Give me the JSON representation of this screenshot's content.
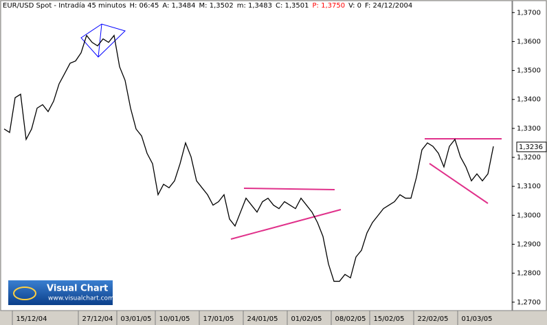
{
  "chart_data": {
    "type": "line",
    "header": [
      {
        "text": "EUR/USD Spot - Intradía 45 minutos",
        "color": "#000000"
      },
      {
        "text": "H: 06:45",
        "color": "#000000"
      },
      {
        "text": "A: 1,3484",
        "color": "#000000"
      },
      {
        "text": "M: 1,3502",
        "color": "#000000"
      },
      {
        "text": "m: 1,3483",
        "color": "#000000"
      },
      {
        "text": "C: 1,3501",
        "color": "#000000"
      },
      {
        "text": "P: 1,3750",
        "color": "#ff0000"
      },
      {
        "text": "V: 0",
        "color": "#000000"
      },
      {
        "text": "F: 24/12/2004",
        "color": "#000000"
      }
    ],
    "categories": [
      null,
      null,
      null,
      null,
      null,
      "15/12/04",
      null,
      null,
      null,
      null,
      null,
      null,
      null,
      null,
      null,
      null,
      null,
      "27/12/04",
      null,
      null,
      null,
      null,
      null,
      null,
      "03/01/05",
      null,
      null,
      null,
      null,
      null,
      null,
      "10/01/05",
      null,
      null,
      null,
      null,
      null,
      null,
      null,
      "17/01/05",
      null,
      null,
      null,
      null,
      null,
      null,
      null,
      "24/01/05",
      null,
      null,
      null,
      null,
      null,
      null,
      null,
      "01/02/05",
      null,
      null,
      null,
      null,
      null,
      null,
      null,
      "08/02/05",
      null,
      null,
      null,
      null,
      null,
      null,
      "15/02/05",
      null,
      null,
      null,
      null,
      null,
      null,
      null,
      "22/02/05",
      null,
      null,
      null,
      null,
      null,
      null,
      null,
      "01/03/05",
      null,
      null,
      null
    ],
    "series": [
      {
        "name": "EUR/USD",
        "color": "#000000",
        "values": [
          1.3298,
          1.3286,
          1.3406,
          1.3418,
          1.3262,
          1.3298,
          1.337,
          1.3382,
          1.3358,
          1.3394,
          1.3454,
          1.3489,
          1.3525,
          1.3533,
          1.3561,
          1.3621,
          1.3597,
          1.3585,
          1.3609,
          1.3597,
          1.3621,
          1.3513,
          1.3466,
          1.337,
          1.3298,
          1.3274,
          1.3214,
          1.3178,
          1.3071,
          1.3107,
          1.3095,
          1.3119,
          1.3178,
          1.325,
          1.3202,
          1.3119,
          1.3095,
          1.3071,
          1.3035,
          1.3047,
          1.3071,
          1.2987,
          1.2963,
          1.3011,
          1.3059,
          1.3035,
          1.3011,
          1.3047,
          1.3059,
          1.3035,
          1.3023,
          1.3047,
          1.3035,
          1.3023,
          1.3059,
          1.3035,
          1.3011,
          1.2975,
          1.2927,
          1.2832,
          1.2772,
          1.2772,
          1.2796,
          1.2784,
          1.2856,
          1.2879,
          1.2939,
          1.2975,
          1.2999,
          1.3023,
          1.3035,
          1.3047,
          1.3071,
          1.3059,
          1.3059,
          1.3131,
          1.3226,
          1.325,
          1.3238,
          1.3214,
          1.3167,
          1.3238,
          1.3262,
          1.3202,
          1.3167,
          1.3119,
          1.3143,
          1.3119,
          1.3143,
          1.3238
        ]
      }
    ],
    "last_price": {
      "value": 1.3236,
      "label": "1,3236"
    },
    "ylim": [
      1.2671,
      1.3741
    ],
    "yticks": [
      {
        "value": 1.27,
        "label": "1,2700"
      },
      {
        "value": 1.28,
        "label": "1,2800"
      },
      {
        "value": 1.29,
        "label": "1,2900"
      },
      {
        "value": 1.3,
        "label": "1,3000"
      },
      {
        "value": 1.31,
        "label": "1,3100"
      },
      {
        "value": 1.32,
        "label": "1,3200"
      },
      {
        "value": 1.33,
        "label": "1,3300"
      },
      {
        "value": 1.34,
        "label": "1,3400"
      },
      {
        "value": 1.35,
        "label": "1,3500"
      },
      {
        "value": 1.36,
        "label": "1,3600"
      },
      {
        "value": 1.37,
        "label": "1,3700"
      }
    ],
    "logo": {
      "title": "Visual Chart",
      "url": "www.visualchart.com"
    }
  }
}
